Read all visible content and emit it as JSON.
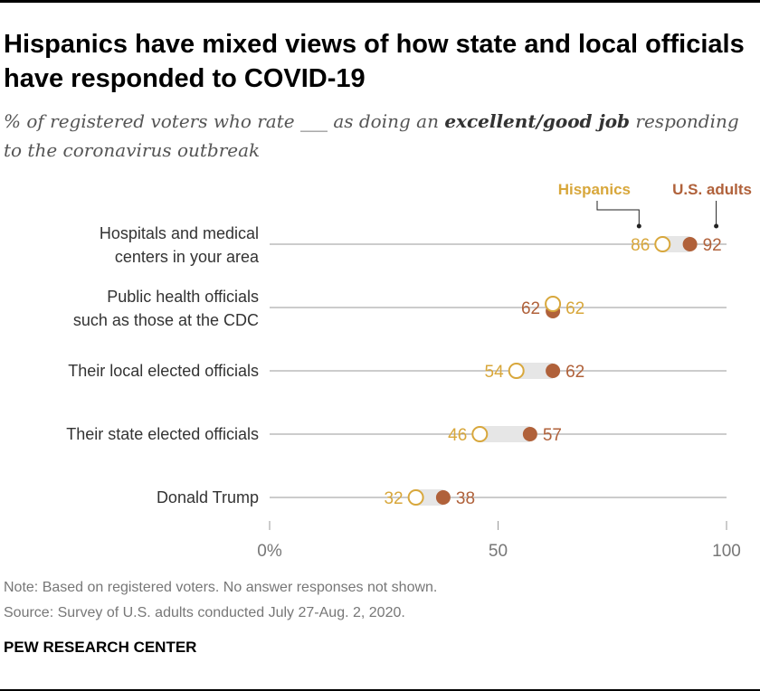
{
  "title": "Hispanics have mixed views of how state and local officials have responded to COVID-19",
  "subtitle": {
    "prefix": "% of registered voters who rate ___ as doing an ",
    "emphasis": "excellent/good job",
    "suffix": " responding to the coronavirus outbreak"
  },
  "legend": {
    "hispanics": "Hispanics",
    "us_adults": "U.S. adults"
  },
  "colors": {
    "hispanics": "#d8a73b",
    "us_adults": "#b0613a",
    "band": "#e6e6e6",
    "grid": "#9a9a9a",
    "axis_text": "#777777"
  },
  "chart_data": {
    "type": "dot-plot",
    "categories": [
      [
        "Hospitals and medical",
        "centers in your area"
      ],
      [
        "Public health officials",
        "such as those at the CDC"
      ],
      [
        "Their local elected officials"
      ],
      [
        "Their state elected officials"
      ],
      [
        "Donald Trump"
      ]
    ],
    "series": [
      {
        "name": "Hispanics",
        "values": [
          86,
          62,
          54,
          46,
          32
        ]
      },
      {
        "name": "U.S. adults",
        "values": [
          92,
          62,
          62,
          57,
          38
        ]
      }
    ],
    "xlim": [
      0,
      100
    ],
    "ticks": [
      0,
      50,
      100
    ],
    "tick_labels": [
      "0%",
      "50",
      "100"
    ]
  },
  "note": "Note: Based on registered voters. No answer responses not shown.",
  "source": "Source: Survey of U.S. adults conducted July 27-Aug. 2, 2020.",
  "brand": "PEW RESEARCH CENTER"
}
